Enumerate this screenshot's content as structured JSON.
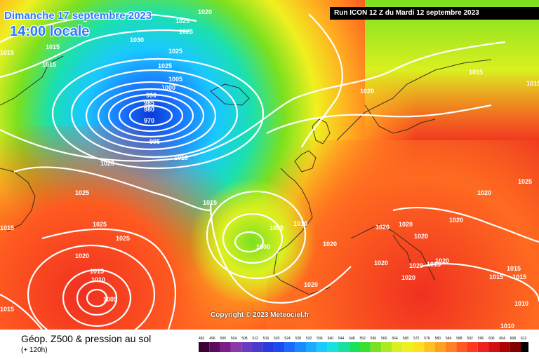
{
  "header": {
    "date": "Dimanche 17 septembre 2023",
    "time": "14:00 locale",
    "run": "Run ICON 12 Z du Mardi 12 septembre 2023"
  },
  "footer": {
    "title": "Géop. Z500 & pression au sol",
    "subtitle": "(+ 120h)",
    "copyright": "Copyright © 2023 Meteociel.fr"
  },
  "legend": {
    "values": [
      "492",
      "496",
      "500",
      "504",
      "508",
      "512",
      "516",
      "520",
      "524",
      "528",
      "532",
      "536",
      "540",
      "544",
      "548",
      "552",
      "556",
      "560",
      "564",
      "568",
      "572",
      "576",
      "580",
      "584",
      "588",
      "592",
      "596",
      "600",
      "604",
      "608",
      "612"
    ],
    "colors": [
      "#3a0033",
      "#5c0a5e",
      "#7a1c8a",
      "#8a3aa8",
      "#6a3ac0",
      "#4a3ad0",
      "#2a3ae0",
      "#1a4af0",
      "#1a6aff",
      "#1a8aff",
      "#1aaaff",
      "#1acaff",
      "#1ae0e0",
      "#1ae0a0",
      "#1ae060",
      "#3ae030",
      "#7ae020",
      "#aaea20",
      "#daf020",
      "#f0f020",
      "#ffe020",
      "#ffc020",
      "#ffa020",
      "#ff8020",
      "#ff5a20",
      "#ff3a20",
      "#f02020",
      "#d01010",
      "#b00000",
      "#800000",
      "#000000"
    ]
  },
  "isobars": [
    {
      "label": "1020"
    },
    {
      "label": "1025"
    },
    {
      "label": "1025"
    },
    {
      "label": "1030"
    },
    {
      "label": "1015"
    },
    {
      "label": "1025"
    },
    {
      "label": "1015"
    },
    {
      "label": "1015"
    },
    {
      "label": "1025"
    },
    {
      "label": "1005"
    },
    {
      "label": "1000"
    },
    {
      "label": "990"
    },
    {
      "label": "985"
    },
    {
      "label": "980"
    },
    {
      "label": "970"
    },
    {
      "label": "995"
    },
    {
      "label": "1010"
    },
    {
      "label": "1020"
    },
    {
      "label": "1020"
    },
    {
      "label": "1015"
    },
    {
      "label": "1015"
    },
    {
      "label": "1025"
    },
    {
      "label": "1025"
    },
    {
      "label": "1015"
    },
    {
      "label": "1025"
    },
    {
      "label": "1025"
    },
    {
      "label": "1020"
    },
    {
      "label": "1015"
    },
    {
      "label": "1010"
    },
    {
      "label": "1005"
    },
    {
      "label": "1000"
    },
    {
      "label": "1005"
    },
    {
      "label": "1010"
    },
    {
      "label": "1015"
    },
    {
      "label": "1015"
    },
    {
      "label": "1020"
    },
    {
      "label": "1020"
    },
    {
      "label": "1020"
    },
    {
      "label": "1020"
    },
    {
      "label": "1020"
    },
    {
      "label": "1020"
    },
    {
      "label": "1020"
    },
    {
      "label": "1020"
    },
    {
      "label": "1020"
    },
    {
      "label": "1020"
    },
    {
      "label": "1020"
    },
    {
      "label": "1015"
    },
    {
      "label": "1015"
    },
    {
      "label": "1015"
    },
    {
      "label": "1010"
    },
    {
      "label": "1010"
    },
    {
      "label": "1015"
    }
  ]
}
